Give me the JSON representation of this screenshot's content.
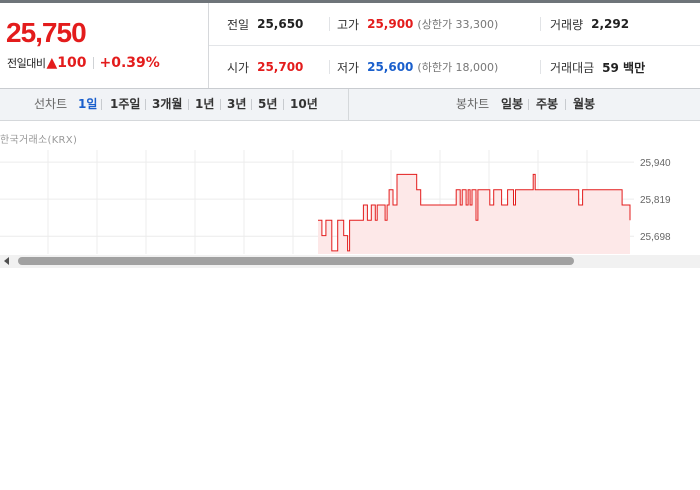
{
  "quote": {
    "price": "25,750",
    "change_label": "전일대비",
    "change_value": "100",
    "change_pct": "+0.39%"
  },
  "info": {
    "prev_close": {
      "label": "전일",
      "value": "25,650"
    },
    "high": {
      "label": "고가",
      "value": "25,900",
      "limit": "(상한가 33,300)"
    },
    "volume": {
      "label": "거래량",
      "value": "2,292"
    },
    "open": {
      "label": "시가",
      "value": "25,700"
    },
    "low": {
      "label": "저가",
      "value": "25,600",
      "limit": "(하한가 18,000)"
    },
    "amount": {
      "label": "거래대금",
      "value": "59 백만"
    }
  },
  "toolbar": {
    "line_chart_label": "선차트",
    "line_periods": [
      "1일",
      "1주일",
      "3개월",
      "1년",
      "3년",
      "5년",
      "10년"
    ],
    "active_period": "1일",
    "candle_chart_label": "봉차트",
    "candle_periods": [
      "일봉",
      "주봉",
      "월봉"
    ]
  },
  "source": "한국거래소(KRX)",
  "colors": {
    "up": "#e31c1c",
    "down": "#1a5fcc",
    "chart_line": "#e31c1c",
    "chart_fill": "#fde8e8"
  },
  "chart_data": {
    "type": "area",
    "title": "",
    "xlabel": "",
    "ylabel": "",
    "y_ticks": [
      "25,940",
      "25,819",
      "25,698"
    ],
    "ylim": [
      25640,
      25960
    ],
    "x": [
      0,
      1,
      2,
      3,
      4,
      5,
      6,
      7,
      8,
      9,
      10,
      11,
      12,
      13,
      14,
      15,
      16,
      17,
      18,
      19,
      20,
      21,
      22,
      23,
      24,
      25,
      26,
      27,
      28,
      29,
      30,
      31,
      32,
      33,
      34,
      35,
      36,
      37,
      38,
      39,
      40,
      41,
      42,
      43,
      44,
      45,
      46,
      47,
      48,
      49,
      50,
      51,
      52,
      53,
      54,
      55,
      56,
      57,
      58,
      59,
      60,
      61,
      62,
      63,
      64,
      65,
      66,
      67,
      68,
      69,
      70,
      71,
      72,
      73,
      74,
      75,
      76,
      77,
      78,
      79,
      80,
      81,
      82,
      83,
      84,
      85,
      86,
      87,
      88,
      89,
      90,
      91,
      92,
      93,
      94,
      95,
      96,
      97,
      98,
      99,
      100,
      101,
      102,
      103,
      104,
      105,
      106,
      107,
      108,
      109,
      110,
      111,
      112,
      113,
      114,
      115,
      116,
      117,
      118,
      119,
      120,
      121,
      122,
      123,
      124,
      125,
      126,
      127,
      128,
      129,
      130,
      131,
      132,
      133,
      134,
      135,
      136,
      137,
      138,
      139,
      140,
      141,
      142,
      143,
      144,
      145,
      146,
      147,
      148,
      149,
      150,
      151,
      152,
      153,
      154,
      155,
      156,
      157,
      158
    ],
    "values": [
      25750,
      25750,
      25700,
      25700,
      25750,
      25750,
      25750,
      25650,
      25650,
      25650,
      25750,
      25750,
      25750,
      25700,
      25700,
      25650,
      25750,
      25750,
      25750,
      25750,
      25750,
      25750,
      25750,
      25800,
      25800,
      25750,
      25750,
      25800,
      25800,
      25750,
      25800,
      25800,
      25800,
      25800,
      25750,
      25800,
      25850,
      25850,
      25800,
      25800,
      25900,
      25900,
      25900,
      25900,
      25900,
      25900,
      25900,
      25900,
      25900,
      25900,
      25850,
      25850,
      25800,
      25800,
      25800,
      25800,
      25800,
      25800,
      25800,
      25800,
      25800,
      25800,
      25800,
      25800,
      25800,
      25800,
      25800,
      25800,
      25800,
      25800,
      25850,
      25850,
      25800,
      25850,
      25850,
      25800,
      25850,
      25800,
      25850,
      25850,
      25750,
      25850,
      25850,
      25850,
      25850,
      25850,
      25850,
      25800,
      25800,
      25850,
      25850,
      25850,
      25850,
      25800,
      25800,
      25800,
      25850,
      25850,
      25850,
      25800,
      25850,
      25850,
      25850,
      25850,
      25850,
      25850,
      25850,
      25850,
      25850,
      25900,
      25850,
      25850,
      25850,
      25850,
      25850,
      25850,
      25850,
      25850,
      25850,
      25850,
      25850,
      25850,
      25850,
      25850,
      25850,
      25850,
      25850,
      25850,
      25850,
      25850,
      25850,
      25850,
      25800,
      25800,
      25850,
      25850,
      25850,
      25850,
      25850,
      25850,
      25850,
      25850,
      25850,
      25850,
      25850,
      25850,
      25850,
      25850,
      25850,
      25850,
      25850,
      25850,
      25850,
      25850,
      25800,
      25800,
      25800,
      25800,
      25750
    ]
  }
}
